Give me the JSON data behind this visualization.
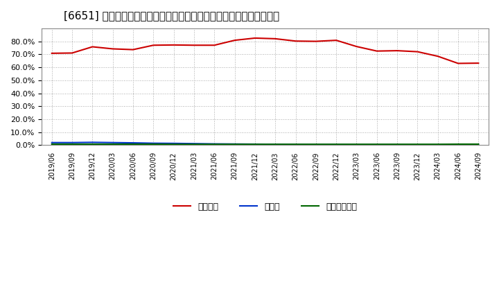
{
  "title": "[6651] 自己資本、のれん、繰延税金資産の総資産に対する比率の推移",
  "x_labels": [
    "2019/06",
    "2019/09",
    "2019/12",
    "2020/03",
    "2020/06",
    "2020/09",
    "2020/12",
    "2021/03",
    "2021/06",
    "2021/09",
    "2021/12",
    "2022/03",
    "2022/06",
    "2022/09",
    "2022/12",
    "2023/03",
    "2023/06",
    "2023/09",
    "2023/12",
    "2024/03",
    "2024/06",
    "2024/09"
  ],
  "equity_ratio": [
    70.8,
    71.0,
    75.8,
    74.2,
    73.6,
    77.0,
    77.2,
    77.0,
    77.0,
    80.8,
    82.5,
    82.0,
    80.2,
    80.0,
    80.8,
    76.0,
    72.5,
    72.8,
    72.0,
    68.5,
    63.0,
    63.2
  ],
  "goodwill_ratio": [
    2.0,
    2.0,
    2.2,
    2.0,
    1.8,
    1.5,
    1.4,
    1.2,
    1.0,
    0.9,
    0.8,
    0.7,
    0.6,
    0.5,
    0.5,
    0.4,
    0.4,
    0.4,
    0.3,
    0.3,
    0.3,
    0.3
  ],
  "deferred_tax_ratio": [
    0.8,
    0.8,
    0.8,
    0.8,
    0.8,
    0.8,
    0.7,
    0.7,
    0.7,
    0.7,
    0.7,
    0.7,
    0.7,
    0.7,
    0.7,
    0.7,
    0.7,
    0.7,
    0.7,
    0.7,
    0.8,
    0.8
  ],
  "equity_color": "#cc0000",
  "goodwill_color": "#0033cc",
  "deferred_tax_color": "#006600",
  "legend_label_equity": "自己資本",
  "legend_label_goodwill": "のれん",
  "legend_label_deferred": "繰延税金資産",
  "ylim": [
    0.0,
    90.0
  ],
  "yticks": [
    0.0,
    10.0,
    20.0,
    30.0,
    40.0,
    50.0,
    60.0,
    70.0,
    80.0
  ],
  "background_color": "#ffffff",
  "plot_bg_color": "#ffffff",
  "grid_color": "#aaaaaa",
  "title_fontsize": 11
}
